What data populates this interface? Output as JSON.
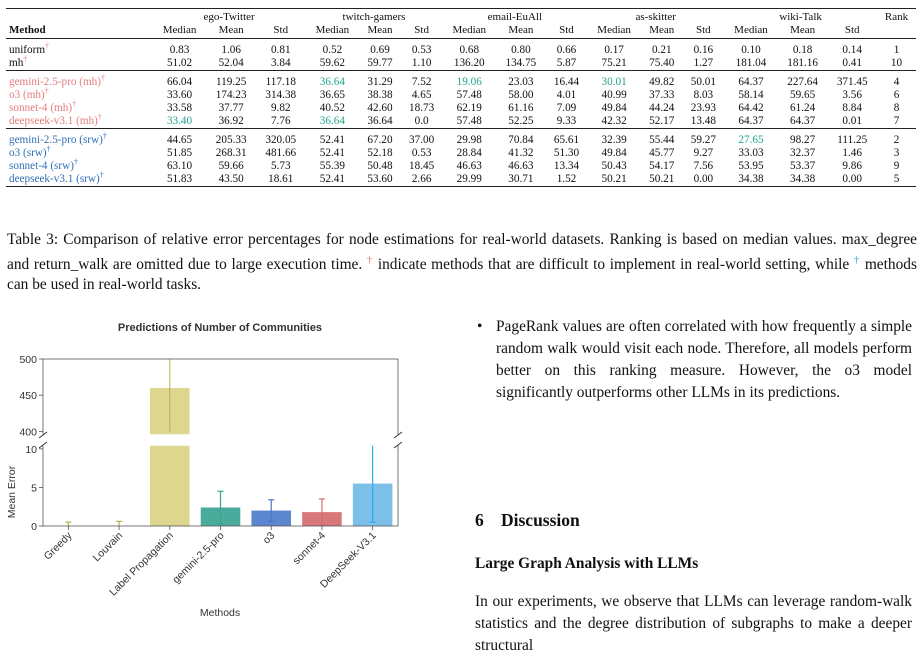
{
  "table": {
    "dataset_headers": [
      "ego-Twitter",
      "twitch-gamers",
      "email-EuAll",
      "as-skitter",
      "wiki-Talk"
    ],
    "rank_header": "Rank",
    "method_header": "Method",
    "stat_headers": [
      "Median",
      "Mean",
      "Std"
    ],
    "groups": [
      [
        {
          "name": "uniform",
          "name_color": "#111111",
          "dagger": true,
          "dagger_color": "#e57c7c",
          "cells": [
            [
              "0.83",
              true,
              ""
            ],
            [
              "1.06",
              false,
              ""
            ],
            [
              "0.81",
              false,
              ""
            ],
            [
              "0.52",
              true,
              ""
            ],
            [
              "0.69",
              false,
              ""
            ],
            [
              "0.53",
              false,
              ""
            ],
            [
              "0.68",
              true,
              ""
            ],
            [
              "0.80",
              false,
              ""
            ],
            [
              "0.66",
              false,
              ""
            ],
            [
              "0.17",
              true,
              ""
            ],
            [
              "0.21",
              false,
              ""
            ],
            [
              "0.16",
              false,
              ""
            ],
            [
              "0.10",
              true,
              ""
            ],
            [
              "0.18",
              false,
              ""
            ],
            [
              "0.14",
              false,
              ""
            ]
          ],
          "rank": "1"
        },
        {
          "name": "mh",
          "name_color": "#111111",
          "dagger": true,
          "dagger_color": "#e57c7c",
          "cells": [
            [
              "51.02",
              false,
              ""
            ],
            [
              "52.04",
              false,
              ""
            ],
            [
              "3.84",
              false,
              ""
            ],
            [
              "59.62",
              false,
              ""
            ],
            [
              "59.77",
              false,
              ""
            ],
            [
              "1.10",
              false,
              ""
            ],
            [
              "136.20",
              false,
              ""
            ],
            [
              "134.75",
              false,
              ""
            ],
            [
              "5.87",
              false,
              ""
            ],
            [
              "75.21",
              false,
              ""
            ],
            [
              "75.40",
              false,
              ""
            ],
            [
              "1.27",
              false,
              ""
            ],
            [
              "181.04",
              false,
              ""
            ],
            [
              "181.16",
              false,
              ""
            ],
            [
              "0.41",
              false,
              ""
            ]
          ],
          "rank": "10"
        }
      ],
      [
        {
          "name": "gemini-2.5-pro (mh)",
          "name_color": "#e57c7c",
          "dagger": true,
          "dagger_color": "#e57c7c",
          "cells": [
            [
              "66.04",
              false,
              ""
            ],
            [
              "119.25",
              false,
              ""
            ],
            [
              "117.18",
              false,
              ""
            ],
            [
              "36.64",
              false,
              "teal"
            ],
            [
              "31.29",
              false,
              ""
            ],
            [
              "7.52",
              false,
              ""
            ],
            [
              "19.06",
              false,
              "teal"
            ],
            [
              "23.03",
              false,
              ""
            ],
            [
              "16.44",
              false,
              ""
            ],
            [
              "30.01",
              false,
              "teal"
            ],
            [
              "49.82",
              false,
              ""
            ],
            [
              "50.01",
              false,
              ""
            ],
            [
              "64.37",
              false,
              ""
            ],
            [
              "227.64",
              false,
              ""
            ],
            [
              "371.45",
              false,
              ""
            ]
          ],
          "rank": "4"
        },
        {
          "name": "o3 (mh)",
          "name_color": "#e57c7c",
          "dagger": true,
          "dagger_color": "#e57c7c",
          "cells": [
            [
              "33.60",
              false,
              ""
            ],
            [
              "174.23",
              false,
              ""
            ],
            [
              "314.38",
              false,
              ""
            ],
            [
              "36.65",
              false,
              ""
            ],
            [
              "38.38",
              false,
              ""
            ],
            [
              "4.65",
              false,
              ""
            ],
            [
              "57.48",
              false,
              ""
            ],
            [
              "58.00",
              false,
              ""
            ],
            [
              "4.01",
              false,
              ""
            ],
            [
              "40.99",
              false,
              ""
            ],
            [
              "37.33",
              false,
              ""
            ],
            [
              "8.03",
              false,
              ""
            ],
            [
              "58.14",
              false,
              ""
            ],
            [
              "59.65",
              false,
              ""
            ],
            [
              "3.56",
              false,
              ""
            ]
          ],
          "rank": "6"
        },
        {
          "name": "sonnet-4 (mh)",
          "name_color": "#e57c7c",
          "dagger": true,
          "dagger_color": "#e57c7c",
          "cells": [
            [
              "33.58",
              false,
              ""
            ],
            [
              "37.77",
              false,
              ""
            ],
            [
              "9.82",
              false,
              ""
            ],
            [
              "40.52",
              false,
              ""
            ],
            [
              "42.60",
              false,
              ""
            ],
            [
              "18.73",
              false,
              ""
            ],
            [
              "62.19",
              false,
              ""
            ],
            [
              "61.16",
              false,
              ""
            ],
            [
              "7.09",
              false,
              ""
            ],
            [
              "49.84",
              false,
              ""
            ],
            [
              "44.24",
              false,
              ""
            ],
            [
              "23.93",
              false,
              ""
            ],
            [
              "64.42",
              false,
              ""
            ],
            [
              "61.24",
              false,
              ""
            ],
            [
              "8.84",
              false,
              ""
            ]
          ],
          "rank": "8"
        },
        {
          "name": "deepseek-v3.1 (mh)",
          "name_color": "#e57c7c",
          "dagger": true,
          "dagger_color": "#e57c7c",
          "cells": [
            [
              "33.40",
              false,
              "teal"
            ],
            [
              "36.92",
              false,
              ""
            ],
            [
              "7.76",
              false,
              ""
            ],
            [
              "36.64",
              false,
              "teal"
            ],
            [
              "36.64",
              false,
              ""
            ],
            [
              "0.0",
              false,
              ""
            ],
            [
              "57.48",
              false,
              ""
            ],
            [
              "52.25",
              false,
              ""
            ],
            [
              "9.33",
              false,
              ""
            ],
            [
              "42.32",
              false,
              ""
            ],
            [
              "52.17",
              false,
              ""
            ],
            [
              "13.48",
              false,
              ""
            ],
            [
              "64.37",
              false,
              ""
            ],
            [
              "64.37",
              false,
              ""
            ],
            [
              "0.01",
              false,
              ""
            ]
          ],
          "rank": "7"
        }
      ],
      [
        {
          "name": "gemini-2.5-pro (srw)",
          "name_color": "#2f6fb8",
          "dagger": true,
          "dagger_color": "#2f6fb8",
          "cells": [
            [
              "44.65",
              false,
              ""
            ],
            [
              "205.33",
              false,
              ""
            ],
            [
              "320.05",
              false,
              ""
            ],
            [
              "52.41",
              false,
              ""
            ],
            [
              "67.20",
              false,
              ""
            ],
            [
              "37.00",
              false,
              ""
            ],
            [
              "29.98",
              false,
              ""
            ],
            [
              "70.84",
              false,
              ""
            ],
            [
              "65.61",
              false,
              ""
            ],
            [
              "32.39",
              false,
              ""
            ],
            [
              "55.44",
              false,
              ""
            ],
            [
              "59.27",
              false,
              ""
            ],
            [
              "27.65",
              false,
              "teal"
            ],
            [
              "98.27",
              false,
              ""
            ],
            [
              "111.25",
              false,
              ""
            ]
          ],
          "rank": "2"
        },
        {
          "name": "o3 (srw)",
          "name_color": "#2f6fb8",
          "dagger": true,
          "dagger_color": "#2f6fb8",
          "cells": [
            [
              "51.85",
              false,
              ""
            ],
            [
              "268.31",
              false,
              ""
            ],
            [
              "481.66",
              false,
              ""
            ],
            [
              "52.41",
              false,
              ""
            ],
            [
              "52.18",
              false,
              ""
            ],
            [
              "0.53",
              false,
              ""
            ],
            [
              "28.84",
              false,
              ""
            ],
            [
              "41.32",
              false,
              ""
            ],
            [
              "51.30",
              false,
              ""
            ],
            [
              "49.84",
              false,
              ""
            ],
            [
              "45.77",
              false,
              ""
            ],
            [
              "9.27",
              false,
              ""
            ],
            [
              "33.03",
              false,
              ""
            ],
            [
              "32.37",
              false,
              ""
            ],
            [
              "1.46",
              false,
              ""
            ]
          ],
          "rank": "3"
        },
        {
          "name": "sonnet-4 (srw)",
          "name_color": "#2f6fb8",
          "dagger": true,
          "dagger_color": "#2f6fb8",
          "cells": [
            [
              "63.10",
              false,
              ""
            ],
            [
              "59.66",
              false,
              ""
            ],
            [
              "5.73",
              false,
              ""
            ],
            [
              "55.39",
              false,
              ""
            ],
            [
              "50.48",
              false,
              ""
            ],
            [
              "18.45",
              false,
              ""
            ],
            [
              "46.63",
              false,
              ""
            ],
            [
              "46.63",
              false,
              ""
            ],
            [
              "13.34",
              false,
              ""
            ],
            [
              "50.43",
              false,
              ""
            ],
            [
              "54.17",
              false,
              ""
            ],
            [
              "7.56",
              false,
              ""
            ],
            [
              "53.95",
              false,
              ""
            ],
            [
              "53.37",
              false,
              ""
            ],
            [
              "9.86",
              false,
              ""
            ]
          ],
          "rank": "9"
        },
        {
          "name": "deepseek-v3.1 (srw)",
          "name_color": "#2f6fb8",
          "dagger": true,
          "dagger_color": "#2f6fb8",
          "cells": [
            [
              "51.83",
              false,
              ""
            ],
            [
              "43.50",
              false,
              ""
            ],
            [
              "18.61",
              false,
              ""
            ],
            [
              "52.41",
              false,
              ""
            ],
            [
              "53.60",
              false,
              ""
            ],
            [
              "2.66",
              false,
              ""
            ],
            [
              "29.99",
              false,
              ""
            ],
            [
              "30.71",
              false,
              ""
            ],
            [
              "1.52",
              false,
              ""
            ],
            [
              "50.21",
              false,
              ""
            ],
            [
              "50.21",
              false,
              ""
            ],
            [
              "0.00",
              false,
              ""
            ],
            [
              "34.38",
              false,
              ""
            ],
            [
              "34.38",
              false,
              ""
            ],
            [
              "0.00",
              false,
              ""
            ]
          ],
          "rank": "5"
        }
      ]
    ]
  },
  "caption": {
    "part1": "Table 3: Comparison of relative error percentages for node estimations for real-world datasets. Ranking is based on median values. max_degree and return_walk are omitted due to large execution time. ",
    "dagger1": "†",
    "dagger1_color": "#e57c7c",
    "part2": " indicate methods that are difficult to implement in real-world setting, while ",
    "dagger2": "†",
    "dagger2_color": "#3aa0e0",
    "part3": " methods can be used in real-world tasks."
  },
  "chart_data": {
    "type": "bar",
    "title": "Predictions of Number of Communities",
    "xlabel": "Methods",
    "ylabel": "Mean Error",
    "categories": [
      "Greedy",
      "Louvain",
      "Label Propagation",
      "gemini-2.5-pro",
      "o3",
      "sonnet-4",
      "DeepSeek-V3.1"
    ],
    "values": [
      0.0,
      0.0,
      460,
      2.4,
      2.0,
      1.8,
      5.5
    ],
    "error": [
      0.5,
      0.6,
      60,
      2.1,
      1.4,
      1.7,
      5.0
    ],
    "colors": [
      "#c9c24f",
      "#c9c24f",
      "#ddd68f",
      "#4aaa9c",
      "#5d86d0",
      "#d9787a",
      "#7cc0ea"
    ],
    "error_colors": [
      "#b8b050",
      "#b8b050",
      "#b8b050",
      "#33a88f",
      "#4a78c8",
      "#d96a70",
      "#2fa8e8"
    ],
    "broken_axis": true,
    "upper_ylim": [
      395,
      500
    ],
    "lower_ylim": [
      0,
      10.5
    ],
    "upper_yticks": [
      "500",
      "450",
      "400"
    ],
    "lower_yticks": [
      "10",
      "5",
      "0"
    ]
  },
  "right": {
    "bullet": "•",
    "bullet_text": "PageRank values are often correlated with how frequently a simple random walk would visit each node. Therefore, all models perform better on this ranking measure. However, the o3 model significantly outperforms other LLMs in its predictions.",
    "section_number": "6",
    "section_title": "Discussion",
    "subsection_title": "Large Graph Analysis with LLMs",
    "paragraph": "In our experiments, we observe that LLMs can leverage random-walk statistics and the degree distribution of subgraphs to make a deeper structural"
  }
}
